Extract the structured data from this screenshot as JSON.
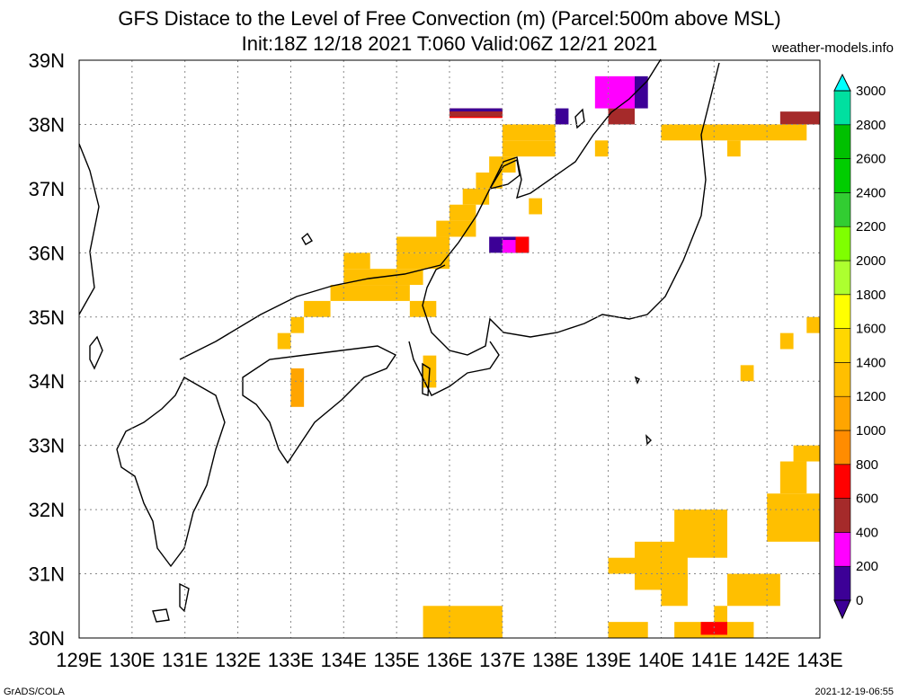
{
  "title": "GFS Distace to the Level of Free Convection (m) (Parcel:500m above MSL)",
  "subtitle": "Init:18Z 12/18 2021 T:060 Valid:06Z 12/21 2021",
  "credit": "weather-models.info",
  "footer_left": "GrADS/COLA",
  "footer_right": "2021-12-19-06:55",
  "map": {
    "lon_range": [
      129,
      143
    ],
    "lat_range": [
      30,
      39
    ],
    "lon_ticks": [
      "129E",
      "130E",
      "131E",
      "132E",
      "133E",
      "134E",
      "135E",
      "136E",
      "137E",
      "138E",
      "139E",
      "140E",
      "141E",
      "142E",
      "143E"
    ],
    "lat_ticks": [
      "30N",
      "31N",
      "32N",
      "33N",
      "34N",
      "35N",
      "36N",
      "37N",
      "38N",
      "39N"
    ],
    "grid": true
  },
  "colorbar": {
    "labels": [
      "0",
      "200",
      "400",
      "600",
      "800",
      "1000",
      "1200",
      "1400",
      "1600",
      "1800",
      "2000",
      "2200",
      "2400",
      "2600",
      "2800",
      "3000"
    ],
    "colors": [
      "#3c0096",
      "#ff00ff",
      "#a52a2a",
      "#ff0000",
      "#ff8c00",
      "#ffa500",
      "#ffbf00",
      "#ffd700",
      "#ffff00",
      "#adff2f",
      "#7fff00",
      "#32cd32",
      "#00cd00",
      "#00c000",
      "#00e0a0",
      "#00ffff"
    ]
  },
  "fields": [
    {
      "lon": 136.0,
      "lat": 38.1,
      "w": 1.0,
      "h": 0.15,
      "color": "#ff0000"
    },
    {
      "lon": 136.0,
      "lat": 38.2,
      "w": 1.0,
      "h": 0.05,
      "color": "#3c0096"
    },
    {
      "lon": 136.0,
      "lat": 38.12,
      "w": 1.0,
      "h": 0.08,
      "color": "#a52a2a"
    },
    {
      "lon": 137.0,
      "lat": 37.75,
      "w": 1.0,
      "h": 0.25,
      "color": "#ffbf00"
    },
    {
      "lon": 137.0,
      "lat": 37.5,
      "w": 1.0,
      "h": 0.25,
      "color": "#ffbf00"
    },
    {
      "lon": 136.75,
      "lat": 37.25,
      "w": 0.5,
      "h": 0.25,
      "color": "#ffbf00"
    },
    {
      "lon": 136.5,
      "lat": 37.0,
      "w": 0.5,
      "h": 0.25,
      "color": "#ffbf00"
    },
    {
      "lon": 136.25,
      "lat": 36.75,
      "w": 0.5,
      "h": 0.25,
      "color": "#ffbf00"
    },
    {
      "lon": 136.0,
      "lat": 36.5,
      "w": 0.5,
      "h": 0.25,
      "color": "#ffbf00"
    },
    {
      "lon": 135.75,
      "lat": 36.25,
      "w": 0.75,
      "h": 0.25,
      "color": "#ffbf00"
    },
    {
      "lon": 135.0,
      "lat": 36.0,
      "w": 1.0,
      "h": 0.25,
      "color": "#ffbf00"
    },
    {
      "lon": 135.0,
      "lat": 35.75,
      "w": 1.0,
      "h": 0.25,
      "color": "#ffbf00"
    },
    {
      "lon": 134.0,
      "lat": 35.75,
      "w": 0.5,
      "h": 0.25,
      "color": "#ffbf00"
    },
    {
      "lon": 134.0,
      "lat": 35.5,
      "w": 1.5,
      "h": 0.25,
      "color": "#ffbf00"
    },
    {
      "lon": 133.75,
      "lat": 35.25,
      "w": 1.5,
      "h": 0.25,
      "color": "#ffbf00"
    },
    {
      "lon": 135.25,
      "lat": 35.0,
      "w": 0.5,
      "h": 0.25,
      "color": "#ffbf00"
    },
    {
      "lon": 133.25,
      "lat": 35.0,
      "w": 0.5,
      "h": 0.25,
      "color": "#ffbf00"
    },
    {
      "lon": 133.0,
      "lat": 34.75,
      "w": 0.25,
      "h": 0.25,
      "color": "#ffbf00"
    },
    {
      "lon": 132.75,
      "lat": 34.5,
      "w": 0.25,
      "h": 0.25,
      "color": "#ffbf00"
    },
    {
      "lon": 133.0,
      "lat": 33.6,
      "w": 0.25,
      "h": 0.6,
      "color": "#ffa500"
    },
    {
      "lon": 135.5,
      "lat": 33.9,
      "w": 0.25,
      "h": 0.5,
      "color": "#ffbf00"
    },
    {
      "lon": 137.5,
      "lat": 36.6,
      "w": 0.25,
      "h": 0.25,
      "color": "#ffbf00"
    },
    {
      "lon": 136.75,
      "lat": 36.0,
      "w": 0.75,
      "h": 0.25,
      "color": "#3c0096"
    },
    {
      "lon": 137.0,
      "lat": 36.0,
      "w": 0.25,
      "h": 0.2,
      "color": "#ff00ff"
    },
    {
      "lon": 137.25,
      "lat": 36.0,
      "w": 0.25,
      "h": 0.25,
      "color": "#ff0000"
    },
    {
      "lon": 138.0,
      "lat": 38.0,
      "w": 0.25,
      "h": 0.25,
      "color": "#3c0096"
    },
    {
      "lon": 139.0,
      "lat": 38.0,
      "w": 0.5,
      "h": 0.25,
      "color": "#a52a2a"
    },
    {
      "lon": 138.75,
      "lat": 38.25,
      "w": 0.75,
      "h": 0.5,
      "color": "#ff00ff"
    },
    {
      "lon": 139.5,
      "lat": 38.25,
      "w": 0.25,
      "h": 0.5,
      "color": "#3c0096"
    },
    {
      "lon": 138.75,
      "lat": 37.5,
      "w": 0.25,
      "h": 0.25,
      "color": "#ffbf00"
    },
    {
      "lon": 141.0,
      "lat": 37.85,
      "w": 1.0,
      "h": 0.15,
      "color": "#ff0000"
    },
    {
      "lon": 142.25,
      "lat": 38.0,
      "w": 0.75,
      "h": 0.2,
      "color": "#a52a2a"
    },
    {
      "lon": 140.0,
      "lat": 37.75,
      "w": 2.75,
      "h": 0.25,
      "color": "#ffbf00"
    },
    {
      "lon": 141.25,
      "lat": 37.5,
      "w": 0.25,
      "h": 0.25,
      "color": "#ffbf00"
    },
    {
      "lon": 142.75,
      "lat": 34.75,
      "w": 0.25,
      "h": 0.25,
      "color": "#ffbf00"
    },
    {
      "lon": 142.25,
      "lat": 34.5,
      "w": 0.25,
      "h": 0.25,
      "color": "#ffbf00"
    },
    {
      "lon": 141.5,
      "lat": 34.0,
      "w": 0.25,
      "h": 0.25,
      "color": "#ffbf00"
    },
    {
      "lon": 142.5,
      "lat": 32.75,
      "w": 0.5,
      "h": 0.25,
      "color": "#ffbf00"
    },
    {
      "lon": 142.25,
      "lat": 32.25,
      "w": 0.5,
      "h": 0.5,
      "color": "#ffbf00"
    },
    {
      "lon": 142.0,
      "lat": 31.5,
      "w": 1.0,
      "h": 0.75,
      "color": "#ffbf00"
    },
    {
      "lon": 140.25,
      "lat": 31.25,
      "w": 1.0,
      "h": 0.75,
      "color": "#ffbf00"
    },
    {
      "lon": 139.5,
      "lat": 30.75,
      "w": 1.0,
      "h": 0.75,
      "color": "#ffbf00"
    },
    {
      "lon": 139.0,
      "lat": 31.0,
      "w": 1.0,
      "h": 0.25,
      "color": "#ffbf00"
    },
    {
      "lon": 141.25,
      "lat": 30.5,
      "w": 1.0,
      "h": 0.5,
      "color": "#ffbf00"
    },
    {
      "lon": 140.0,
      "lat": 30.5,
      "w": 0.5,
      "h": 0.5,
      "color": "#ffbf00"
    },
    {
      "lon": 141.0,
      "lat": 30.25,
      "w": 0.25,
      "h": 0.25,
      "color": "#ffbf00"
    },
    {
      "lon": 140.25,
      "lat": 30.0,
      "w": 1.5,
      "h": 0.25,
      "color": "#ffbf00"
    },
    {
      "lon": 140.75,
      "lat": 30.05,
      "w": 0.5,
      "h": 0.2,
      "color": "#ff0000"
    },
    {
      "lon": 139.0,
      "lat": 30.0,
      "w": 0.75,
      "h": 0.25,
      "color": "#ffbf00"
    },
    {
      "lon": 135.5,
      "lat": 30.0,
      "w": 1.5,
      "h": 0.5,
      "color": "#ffbf00"
    }
  ]
}
